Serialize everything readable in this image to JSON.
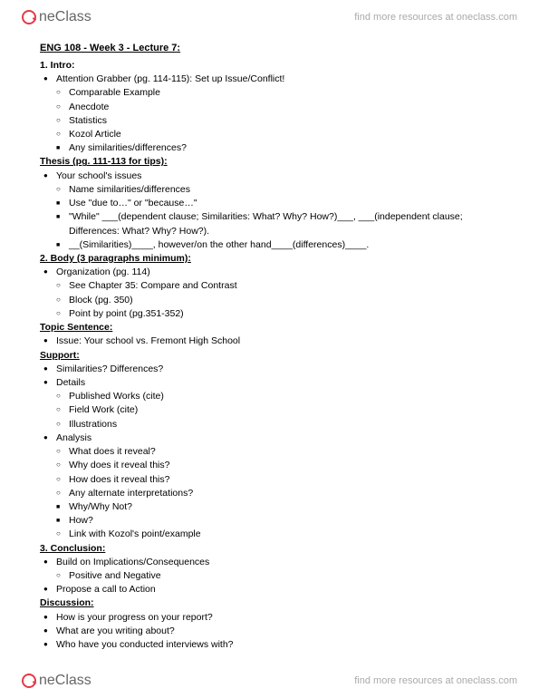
{
  "brand": {
    "name": "neClass",
    "tagline": "find more resources at oneclass.com"
  },
  "title": "ENG 108 - Week 3 - Lecture 7:",
  "s1": {
    "h": "1. Intro:",
    "a": "Attention Grabber (pg. 114-115): Set up Issue/Conflict!",
    "b": [
      "Comparable Example",
      "Anecdote",
      "Statistics",
      "Kozol Article"
    ],
    "c": "Any similarities/differences?"
  },
  "thesis": {
    "h": "Thesis (pg. 111-113 for tips):",
    "a": "Your school's issues",
    "b": "Name similarities/differences",
    "c": "Use \"due to…\" or \"because…\"",
    "d": "\"While\" ___(dependent clause; Similarities: What? Why? How?)___, ___(independent clause; Differences: What? Why? How?).",
    "e": "__(Similarities)____, however/on the other hand____(differences)____."
  },
  "s2": {
    "h": "2. Body (3 paragraphs minimum):",
    "a": "Organization (pg. 114)",
    "b": [
      "See Chapter 35: Compare and Contrast",
      "Block (pg. 350)",
      "Point by point (pg.351-352)"
    ]
  },
  "topic": {
    "h": "Topic Sentence:",
    "a": "Issue: Your school vs. Fremont High School"
  },
  "support": {
    "h": "Support:",
    "a": "Similarities? Differences?",
    "b": "Details",
    "bl": [
      "Published Works (cite)",
      "Field Work (cite)",
      "Illustrations"
    ],
    "c": "Analysis",
    "cl": [
      "What does it reveal?",
      "Why does it reveal this?",
      "How does it reveal this?",
      "Any alternate interpretations?"
    ],
    "cs": [
      "Why/Why Not?",
      "How?"
    ],
    "d": "Link with Kozol's point/example"
  },
  "s3": {
    "h": "3. Conclusion:",
    "a": "Build on Implications/Consequences",
    "b": "Positive and Negative",
    "c": "Propose a call to Action"
  },
  "disc": {
    "h": "Discussion:",
    "a": [
      "How is your progress on your report?",
      "What are you writing about?",
      "Who have you conducted interviews with?"
    ]
  }
}
